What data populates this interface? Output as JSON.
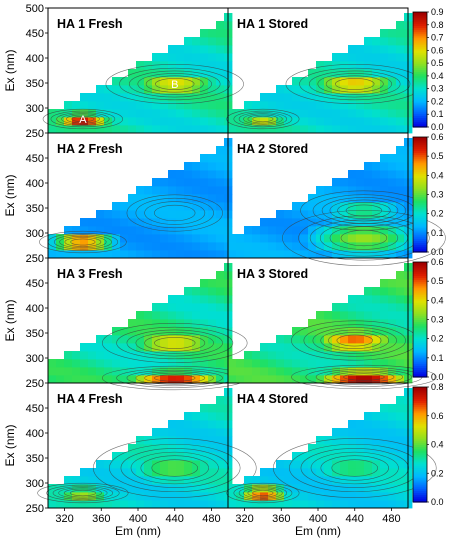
{
  "chart_data": {
    "type": "heatmap",
    "xlabel": "Em (nm)",
    "ylabel": "Ex (nm)",
    "x_ticks": [
      "320",
      "360",
      "400",
      "440",
      "480"
    ],
    "y_ticks": [
      "250",
      "300",
      "350",
      "400",
      "450",
      "500"
    ],
    "x_range": [
      302,
      498
    ],
    "y_range": [
      250,
      500
    ],
    "panels": [
      {
        "title": "HA 1 Fresh",
        "row": 0,
        "col": 0,
        "peaks": [
          {
            "label": "A",
            "em": 340,
            "ex": 278,
            "intensity": 0.9,
            "sem": 22,
            "sex": 10
          },
          {
            "label": "B",
            "em": 440,
            "ex": 348,
            "intensity": 0.63,
            "sem": 38,
            "sex": 20
          }
        ],
        "background": 0.38
      },
      {
        "title": "HA 1 Stored",
        "row": 0,
        "col": 1,
        "peaks": [
          {
            "em": 340,
            "ex": 278,
            "intensity": 0.62,
            "sem": 20,
            "sex": 10
          },
          {
            "em": 440,
            "ex": 348,
            "intensity": 0.66,
            "sem": 38,
            "sex": 20
          }
        ],
        "background": 0.36
      },
      {
        "title": "HA 2 Fresh",
        "row": 1,
        "col": 0,
        "peaks": [
          {
            "em": 340,
            "ex": 282,
            "intensity": 0.6,
            "sem": 24,
            "sex": 11
          },
          {
            "em": 440,
            "ex": 340,
            "intensity": 0.1,
            "sem": 40,
            "sex": 28
          }
        ],
        "background": 0.14
      },
      {
        "title": "HA 2 Stored",
        "row": 1,
        "col": 1,
        "peaks": [
          {
            "em": 450,
            "ex": 290,
            "intensity": 0.34,
            "sem": 45,
            "sex": 28
          },
          {
            "em": 450,
            "ex": 345,
            "intensity": 0.26,
            "sem": 35,
            "sex": 20
          }
        ],
        "background": 0.14
      },
      {
        "title": "HA 3 Fresh",
        "row": 2,
        "col": 0,
        "peaks": [
          {
            "em": 440,
            "ex": 260,
            "intensity": 0.55,
            "sem": 40,
            "sex": 12
          },
          {
            "em": 440,
            "ex": 330,
            "intensity": 0.42,
            "sem": 40,
            "sex": 20
          }
        ],
        "background": 0.28
      },
      {
        "title": "HA 3 Stored",
        "row": 2,
        "col": 1,
        "peaks": [
          {
            "em": 450,
            "ex": 262,
            "intensity": 0.62,
            "sem": 40,
            "sex": 12
          },
          {
            "em": 440,
            "ex": 335,
            "intensity": 0.5,
            "sem": 35,
            "sex": 20
          }
        ],
        "background": 0.3
      },
      {
        "title": "HA 4 Fresh",
        "row": 3,
        "col": 0,
        "peaks": [
          {
            "em": 340,
            "ex": 280,
            "intensity": 0.55,
            "sem": 25,
            "sex": 10
          },
          {
            "em": 440,
            "ex": 330,
            "intensity": 0.4,
            "sem": 45,
            "sex": 30
          }
        ],
        "background": 0.3
      },
      {
        "title": "HA 4 Stored",
        "row": 3,
        "col": 1,
        "peaks": [
          {
            "em": 340,
            "ex": 280,
            "intensity": 0.8,
            "sem": 20,
            "sex": 10
          },
          {
            "em": 440,
            "ex": 330,
            "intensity": 0.35,
            "sem": 45,
            "sex": 30
          }
        ],
        "background": 0.28
      }
    ],
    "colorbars": [
      {
        "row": 0,
        "min": 0.0,
        "max": 0.9,
        "ticks": [
          "0.0",
          "0.1",
          "0.2",
          "0.3",
          "0.4",
          "0.5",
          "0.6",
          "0.7",
          "0.8",
          "0.9"
        ]
      },
      {
        "row": 1,
        "min": 0.0,
        "max": 0.6,
        "ticks": [
          "0.0",
          "0.1",
          "0.2",
          "0.3",
          "0.4",
          "0.5",
          "0.6"
        ]
      },
      {
        "row": 2,
        "min": 0.0,
        "max": 0.6,
        "ticks": [
          "0.0",
          "0.1",
          "0.2",
          "0.3",
          "0.4",
          "0.5",
          "0.6"
        ]
      },
      {
        "row": 3,
        "min": 0.0,
        "max": 0.8,
        "ticks": [
          "0.0",
          "0.2",
          "0.4",
          "0.6",
          "0.8"
        ]
      }
    ],
    "colormap": [
      "#0000e0",
      "#0060ff",
      "#00b8ff",
      "#00e0d0",
      "#20e060",
      "#90e020",
      "#e0e000",
      "#ff9800",
      "#e02000",
      "#a00000"
    ],
    "grid": false
  }
}
